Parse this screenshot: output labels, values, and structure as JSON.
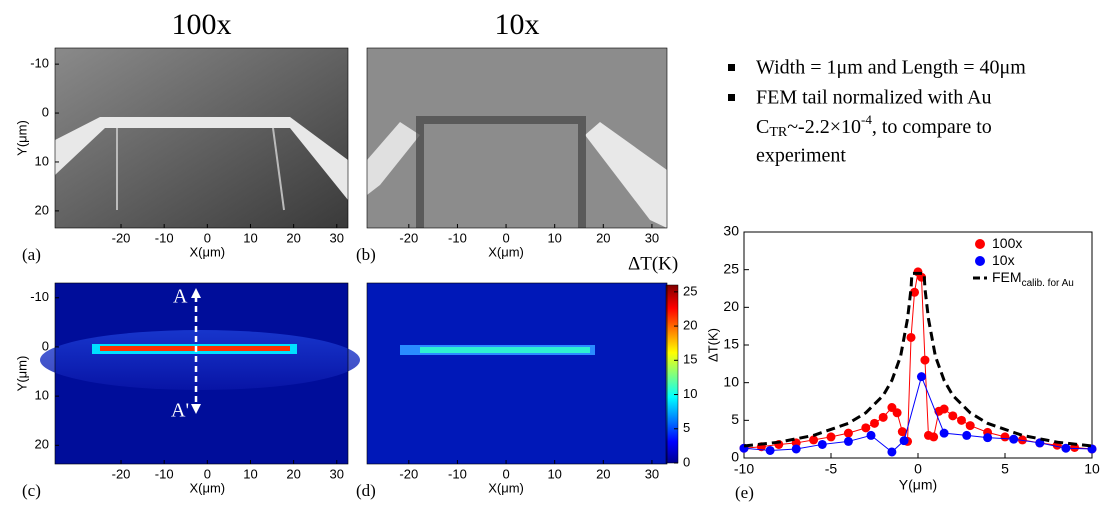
{
  "panels": [
    {
      "label": "(a)",
      "title": "100x",
      "xlabel": "X(μm)",
      "ylabel": "Y(μm)",
      "xlim": [
        -35.3,
        32.6
      ],
      "ylim": [
        -13.3,
        23.5
      ],
      "xticks": [
        -20,
        -10,
        0,
        10,
        20,
        30
      ],
      "yticks": [
        -10,
        0,
        10,
        20
      ]
    },
    {
      "label": "(b)",
      "title": "10x",
      "xlabel": "X(μm)",
      "xlim": [
        -28.6,
        33.1
      ],
      "ylim": [
        -13.3,
        23.5
      ],
      "xticks": [
        -20,
        -10,
        0,
        10,
        20,
        30
      ]
    },
    {
      "label": "(c)",
      "xlabel": "X(μm)",
      "ylabel": "Y(μm)",
      "xlim": [
        -35.3,
        32.6
      ],
      "ylim": [
        -13,
        23.8
      ],
      "xticks": [
        -20,
        -10,
        0,
        10,
        20,
        30
      ],
      "yticks": [
        -10,
        0,
        10,
        20
      ],
      "annotations": [
        "A",
        "A'"
      ]
    },
    {
      "label": "(d)",
      "xlabel": "X(μm)",
      "xlim": [
        -28.6,
        33.1
      ],
      "ylim": [
        -13,
        23.8
      ],
      "xticks": [
        -20,
        -10,
        0,
        10,
        20,
        30
      ]
    }
  ],
  "colorbar": {
    "label": "ΔT(K)",
    "clim": [
      0,
      26
    ],
    "ticks": [
      0,
      5,
      10,
      15,
      20,
      25
    ]
  },
  "bullets": {
    "first": "Width = 1μm and Length = 40μm",
    "second": [
      "FEM tail normalized with Au",
      "C",
      "TR",
      "~-2.2×10",
      "-4",
      ", to compare to",
      "experiment"
    ]
  },
  "chart_data": {
    "type": "line",
    "label": "(e)",
    "xlabel": "Y(μm)",
    "ylabel": "ΔT(K)",
    "xlim": [
      -10,
      10
    ],
    "ylim": [
      0,
      30
    ],
    "xticks": [
      -10,
      -5,
      0,
      5,
      10
    ],
    "yticks": [
      0,
      5,
      10,
      15,
      20,
      25,
      30
    ],
    "legend": "upper right",
    "series": [
      {
        "name": "100x",
        "color": "#ff0000",
        "marker": "circle",
        "dashed": false,
        "x": [
          -10,
          -9,
          -8,
          -7,
          -6,
          -5,
          -4,
          -3,
          -2.5,
          -2,
          -1.5,
          -1.2,
          -0.9,
          -0.6,
          -0.4,
          -0.2,
          0,
          0.2,
          0.4,
          0.6,
          0.9,
          1.2,
          1.5,
          2,
          2.5,
          3,
          4,
          5,
          6,
          7,
          8,
          9,
          10
        ],
        "values": [
          1.3,
          1.5,
          1.8,
          2.0,
          2.4,
          2.8,
          3.3,
          4.0,
          4.6,
          5.4,
          6.7,
          6.0,
          3.5,
          2.2,
          16,
          22,
          24.7,
          24,
          13,
          3,
          2.8,
          6.2,
          6.5,
          5.6,
          5.0,
          4.3,
          3.4,
          2.8,
          2.4,
          2.0,
          1.7,
          1.4,
          1.2
        ]
      },
      {
        "name": "10x",
        "color": "#0000ff",
        "marker": "circle",
        "dashed": false,
        "x": [
          -10,
          -8.5,
          -7,
          -5.5,
          -4,
          -2.7,
          -1.5,
          -0.8,
          0.2,
          1.5,
          2.8,
          4,
          5.5,
          7,
          8.5,
          10
        ],
        "values": [
          1.3,
          1.0,
          1.2,
          1.8,
          2.2,
          3.0,
          0.8,
          2.3,
          10.8,
          3.3,
          3.0,
          2.7,
          2.5,
          2.0,
          1.3,
          1.2
        ]
      },
      {
        "name": "FEM",
        "name_sub": "calib. for Au",
        "color": "#000000",
        "marker": null,
        "dashed": true,
        "x": [
          -10,
          -8,
          -6,
          -4,
          -3,
          -2,
          -1.5,
          -1,
          -0.6,
          -0.4,
          -0.35,
          0.35,
          0.4,
          0.6,
          1,
          1.5,
          2,
          3,
          4,
          6,
          8,
          10
        ],
        "values": [
          1.6,
          2.1,
          3.0,
          4.6,
          6.0,
          8.3,
          10.3,
          13.5,
          18.5,
          22.5,
          24.5,
          24.5,
          22.5,
          18.5,
          13.5,
          10.3,
          8.3,
          6.0,
          4.6,
          3.0,
          2.1,
          1.6
        ]
      }
    ]
  }
}
